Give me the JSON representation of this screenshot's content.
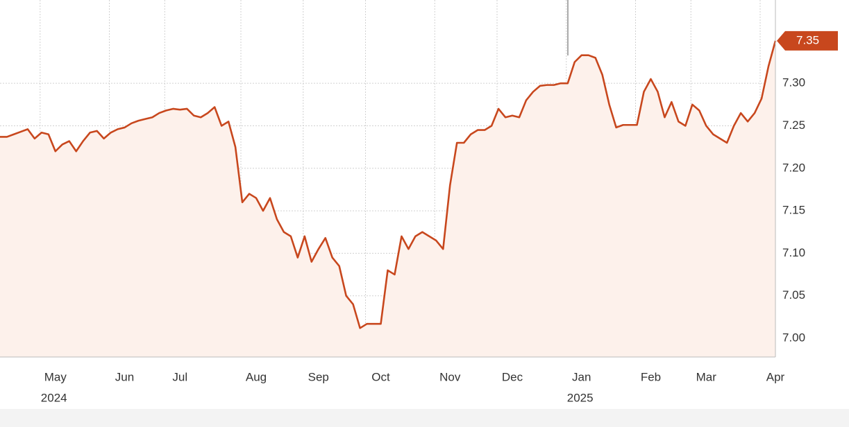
{
  "chart_data": {
    "type": "area-line",
    "categories": [
      null,
      null,
      null,
      null,
      null,
      null,
      null,
      null,
      "May",
      null,
      null,
      null,
      null,
      null,
      null,
      null,
      null,
      null,
      "Jun",
      null,
      null,
      null,
      null,
      null,
      null,
      null,
      "Jul",
      null,
      null,
      null,
      null,
      null,
      null,
      null,
      null,
      null,
      null,
      "Aug",
      null,
      null,
      null,
      null,
      null,
      null,
      null,
      null,
      "Sep",
      null,
      null,
      null,
      null,
      null,
      null,
      null,
      null,
      "Oct",
      null,
      null,
      null,
      null,
      null,
      null,
      null,
      null,
      null,
      "Nov",
      null,
      null,
      null,
      null,
      null,
      null,
      null,
      null,
      "Dec",
      null,
      null,
      null,
      null,
      null,
      null,
      null,
      null,
      null,
      "Jan",
      null,
      null,
      null,
      null,
      null,
      null,
      null,
      null,
      null,
      "Feb",
      null,
      null,
      null,
      null,
      null,
      null,
      null,
      "Mar",
      null,
      null,
      null,
      null,
      null,
      null,
      null,
      null,
      null,
      "Apr"
    ],
    "years": [
      null,
      null,
      null,
      null,
      null,
      null,
      null,
      null,
      "2024",
      null,
      null,
      null,
      null,
      null,
      null,
      null,
      null,
      null,
      null,
      null,
      null,
      null,
      null,
      null,
      null,
      null,
      null,
      null,
      null,
      null,
      null,
      null,
      null,
      null,
      null,
      null,
      null,
      null,
      null,
      null,
      null,
      null,
      null,
      null,
      null,
      null,
      null,
      null,
      null,
      null,
      null,
      null,
      null,
      null,
      null,
      null,
      null,
      null,
      null,
      null,
      null,
      null,
      null,
      null,
      null,
      null,
      null,
      null,
      null,
      null,
      null,
      null,
      null,
      null,
      null,
      null,
      null,
      null,
      null,
      null,
      null,
      null,
      null,
      null,
      "2025",
      null,
      null,
      null,
      null,
      null,
      null,
      null,
      null,
      null,
      null,
      null,
      null,
      null,
      null,
      null,
      null,
      null,
      null,
      null,
      null,
      null,
      null,
      null,
      null,
      null,
      null,
      null,
      null
    ],
    "values": [
      7.237,
      7.237,
      7.24,
      7.243,
      7.246,
      7.235,
      7.242,
      7.24,
      7.22,
      7.228,
      7.232,
      7.22,
      7.232,
      7.242,
      7.244,
      7.235,
      7.242,
      7.246,
      7.248,
      7.253,
      7.256,
      7.258,
      7.26,
      7.265,
      7.268,
      7.27,
      7.269,
      7.27,
      7.262,
      7.26,
      7.265,
      7.272,
      7.25,
      7.255,
      7.225,
      7.16,
      7.17,
      7.165,
      7.15,
      7.165,
      7.14,
      7.125,
      7.12,
      7.095,
      7.12,
      7.09,
      7.105,
      7.118,
      7.095,
      7.085,
      7.05,
      7.04,
      7.012,
      7.017,
      7.017,
      7.017,
      7.08,
      7.075,
      7.12,
      7.105,
      7.12,
      7.125,
      7.12,
      7.115,
      7.105,
      7.18,
      7.23,
      7.23,
      7.24,
      7.245,
      7.245,
      7.25,
      7.27,
      7.26,
      7.262,
      7.26,
      7.28,
      7.29,
      7.297,
      7.298,
      7.298,
      7.3,
      7.3,
      7.325,
      7.333,
      7.333,
      7.33,
      7.31,
      7.275,
      7.248,
      7.251,
      7.251,
      7.251,
      7.29,
      7.305,
      7.29,
      7.26,
      7.278,
      7.255,
      7.25,
      7.275,
      7.268,
      7.25,
      7.24,
      7.235,
      7.23,
      7.25,
      7.265,
      7.255,
      7.265,
      7.282,
      7.32,
      7.35
    ],
    "color": "#c8471d",
    "fill": "#fdf1eb",
    "ylim": [
      6.978,
      7.398
    ],
    "yticks": [
      {
        "value": 7,
        "label": "7.00"
      },
      7.05,
      {
        "value": 7.1,
        "label": "7.10"
      },
      7.15,
      {
        "value": 7.2,
        "label": "7.20"
      },
      7.25,
      {
        "value": 7.3,
        "label": "7.30"
      }
    ],
    "grid": true
  }
}
